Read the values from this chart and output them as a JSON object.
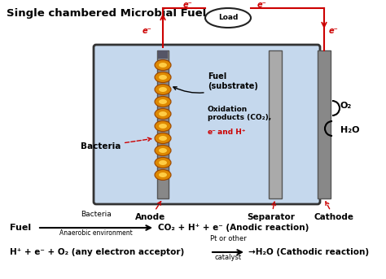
{
  "title": "Single chambered Microbial Fuel",
  "title_fontsize": 9.5,
  "chamber_bg": "#c5d8ed",
  "chamber_border": "#333333",
  "wire_color": "#cc0000",
  "label_color": "#000000",
  "red_text_color": "#cc0000",
  "bacteria_outer": "#dd8800",
  "bacteria_inner": "#ffcc44",
  "anode_gray": "#888888",
  "sep_gray": "#aaaaaa",
  "cathode_gray": "#888888",
  "background_color": "#ffffff",
  "load_text": "Load",
  "eq1_left": "Fuel",
  "eq1_top": "Bacteria",
  "eq1_bot": "Anaerobic environment",
  "eq1_right": "CO₂ + H⁺ + e⁻ (Anodic reaction)",
  "eq2_left": "H⁺ + e⁻ + O₂ (any electron acceptor)",
  "eq2_top": "Pt or other",
  "eq2_bot": "catalyst",
  "eq2_right": "→H₂O (Cathodic reaction)"
}
